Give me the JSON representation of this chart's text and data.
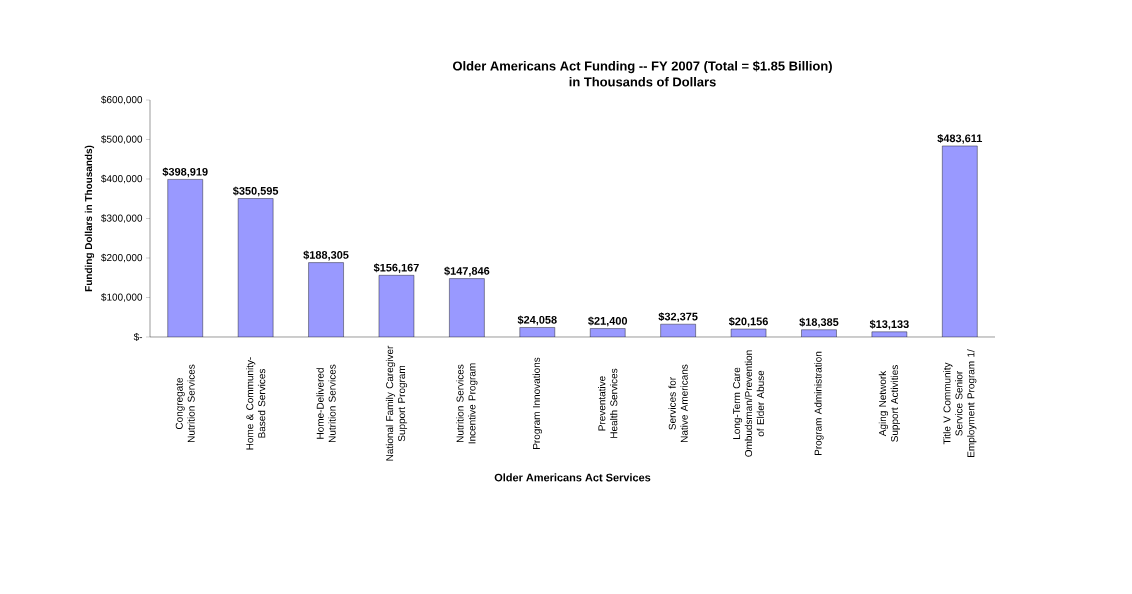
{
  "chart_data": {
    "type": "bar",
    "title": "Older Americans Act Funding -- FY 2007 (Total = $1.85 Billion)",
    "subtitle": "in Thousands of Dollars",
    "xlabel": "Older Americans Act Services",
    "ylabel": "Funding Dollars in Thousands)",
    "categories": [
      "Congregate Nutrition Services",
      "Home & Community-Based Services",
      "Home-Delivered Nutrition Services",
      "National Family Caregiver Support Program",
      "Nutrition Services Incentive Program",
      "Program Innovations",
      "Preventative Health Services",
      "Services for Native Americans",
      "Long-Term Care Ombudsman/Prevention of Elder Abuse",
      "Program Administration",
      "Aging Network Support Activities",
      "Title V Community Service Senior Employment Program 1/"
    ],
    "values": [
      398919,
      350595,
      188305,
      156167,
      147846,
      24058,
      21400,
      32375,
      20156,
      18385,
      13133,
      483611
    ],
    "value_labels": [
      "$398,919",
      "$350,595",
      "$188,305",
      "$156,167",
      "$147,846",
      "$24,058",
      "$21,400",
      "$32,375",
      "$20,156",
      "$18,385",
      "$13,133",
      "$483,611"
    ],
    "color": "#9999ff",
    "ylim": [
      0,
      600000
    ],
    "yticks": [
      {
        "value": 0,
        "label": "$-"
      },
      {
        "value": 100000,
        "label": "$100,000"
      },
      {
        "value": 200000,
        "label": "$200,000"
      },
      {
        "value": 300000,
        "label": "$300,000"
      },
      {
        "value": 400000,
        "label": "$400,000"
      },
      {
        "value": 500000,
        "label": "$500,000"
      },
      {
        "value": 600000,
        "label": "$600,000"
      }
    ],
    "grid": false
  }
}
